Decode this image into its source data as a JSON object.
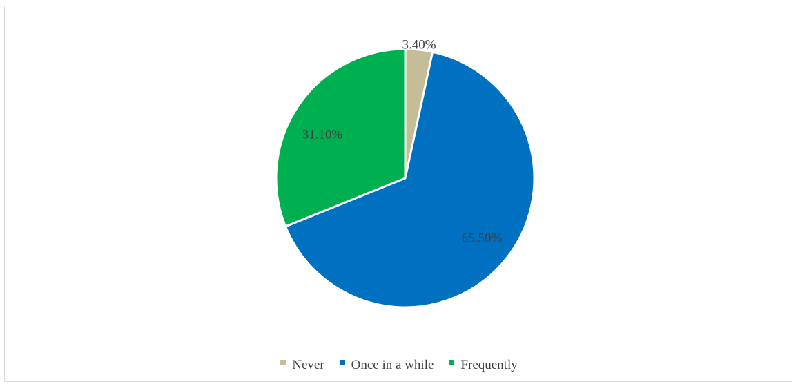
{
  "chart_data": {
    "type": "pie",
    "title": "",
    "slices": [
      {
        "name": "Never",
        "value": 3.4,
        "label": "3.40%",
        "color": "#c4bd97"
      },
      {
        "name": "Once in a while",
        "value": 65.5,
        "label": "65.50%",
        "color": "#0070c0"
      },
      {
        "name": "Frequently",
        "value": 31.1,
        "label": "31.10%",
        "color": "#00b050"
      }
    ],
    "start_angle": "12 o'clock",
    "direction": "clockwise",
    "legend_position": "bottom",
    "slice_border_color": "#ffffff"
  }
}
